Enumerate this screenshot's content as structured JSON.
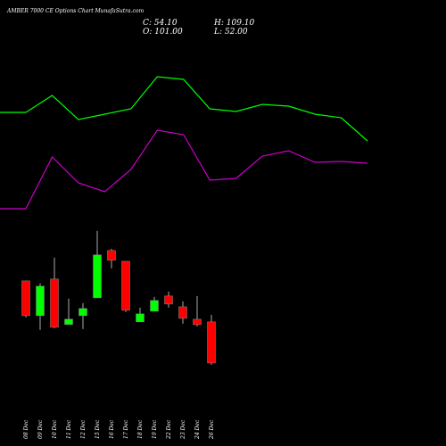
{
  "chart_data": {
    "type": "candlestick",
    "title": "AMBER 7000  CE Options Chart MunafaSutra.com",
    "ohlc_labels": [
      "C: 54.10",
      "H: 109.10",
      "O: 101.00",
      "L: 52.00"
    ],
    "categories": [
      "08 Dec",
      "09 Dec",
      "10 Dec",
      "11 Dec",
      "12 Dec",
      "15 Dec",
      "16 Dec",
      "17 Dec",
      "18 Dec",
      "19 Dec",
      "22 Dec",
      "23 Dec",
      "24 Dec",
      "26 Dec"
    ],
    "open": [
      147.9,
      108.1,
      150.0,
      98.0,
      108.1,
      128.5,
      182.6,
      170.3,
      101.0,
      113.2,
      130.6,
      118.3,
      104.1,
      101.0
    ],
    "high": [
      147.9,
      144.9,
      174.4,
      127.5,
      122.4,
      205.0,
      184.6,
      170.3,
      117.3,
      129.5,
      135.7,
      124.4,
      130.6,
      109.1
    ],
    "low": [
      106.1,
      91.8,
      93.9,
      98.0,
      92.8,
      128.5,
      162.2,
      112.2,
      101.0,
      113.2,
      117.3,
      99.0,
      95.9,
      52.0
    ],
    "close": [
      108.1,
      141.8,
      94.9,
      104.1,
      116.3,
      177.5,
      171.4,
      114.3,
      110.2,
      125.5,
      121.4,
      105.1,
      97.9,
      54.1
    ],
    "up_color": "#00ff00",
    "down_color": "#ff0000",
    "ylim": [
      0,
      214
    ],
    "y2lim": [
      0,
      100
    ],
    "series": [
      {
        "color": "#00ff00",
        "axis": "y2",
        "values": [
          67,
          76.5,
          63,
          66,
          69,
          87,
          85.5,
          69,
          67.5,
          71.5,
          70.5,
          66,
          64,
          51
        ]
      },
      {
        "color": "#cc00cc",
        "axis": "y2",
        "values": [
          13,
          42,
          27.5,
          22.5,
          35,
          57,
          54.5,
          29,
          30,
          42.5,
          45.5,
          39,
          39.5,
          38.5
        ]
      }
    ]
  }
}
